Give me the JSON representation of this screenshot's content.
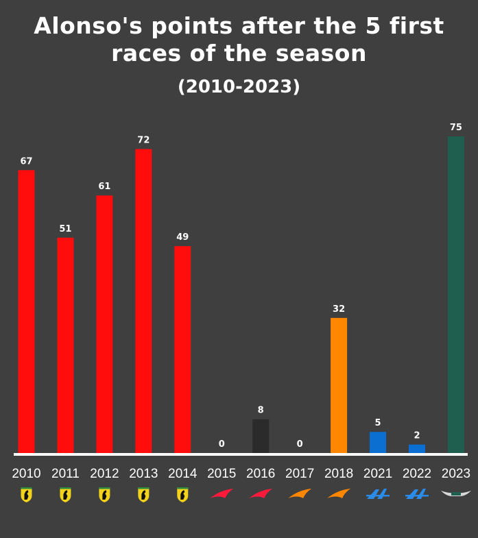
{
  "title": "Alonso's points after the 5 first races of the season",
  "subtitle": "(2010-2023)",
  "chart_data": {
    "type": "bar",
    "title": "Alonso's points after the 5 first races of the season",
    "subtitle": "(2010-2023)",
    "categories": [
      "2010",
      "2011",
      "2012",
      "2013",
      "2014",
      "2015",
      "2016",
      "2017",
      "2018",
      "2021",
      "2022",
      "2023"
    ],
    "values": [
      67,
      51,
      61,
      72,
      49,
      0,
      8,
      0,
      32,
      5,
      2,
      75
    ],
    "bar_colors": [
      "#ff0d0d",
      "#ff0d0d",
      "#ff0d0d",
      "#ff0d0d",
      "#ff0d0d",
      "#ff0d0d",
      "#2b2b2b",
      "#ff8700",
      "#ff8700",
      "#0a6fd0",
      "#0a6fd0",
      "#1f5f4f"
    ],
    "team_icons": [
      "ferrari-icon",
      "ferrari-icon",
      "ferrari-icon",
      "ferrari-icon",
      "ferrari-icon",
      "mclaren-icon",
      "mclaren-icon",
      "mclaren-icon",
      "mclaren-icon",
      "alpine-icon",
      "alpine-icon",
      "aston-martin-icon"
    ],
    "ylim": [
      0,
      75
    ],
    "grid": false,
    "legend": "none"
  }
}
